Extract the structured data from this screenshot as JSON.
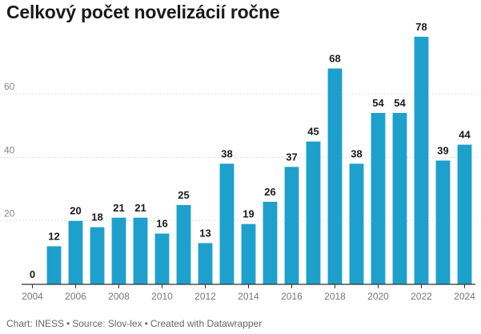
{
  "chart_data": {
    "type": "bar",
    "title": "Celkový počet novelizácií ročne",
    "xlabel": "",
    "ylabel": "",
    "categories": [
      "2004",
      "2005",
      "2006",
      "2007",
      "2008",
      "2009",
      "2010",
      "2011",
      "2012",
      "2013",
      "2014",
      "2015",
      "2016",
      "2017",
      "2018",
      "2019",
      "2020",
      "2021",
      "2022",
      "2023",
      "2024"
    ],
    "values": [
      0,
      12,
      20,
      18,
      21,
      21,
      16,
      25,
      13,
      38,
      19,
      26,
      37,
      45,
      68,
      38,
      54,
      54,
      78,
      39,
      44
    ],
    "data_labels": [
      "0",
      "12",
      "20",
      "18",
      "21",
      "21",
      "16",
      "25",
      "13",
      "38",
      "19",
      "26",
      "37",
      "45",
      "68",
      "38",
      "54",
      "54",
      "78",
      "39",
      "44"
    ],
    "x_tick_labels": [
      "2004",
      "2006",
      "2008",
      "2010",
      "2012",
      "2014",
      "2016",
      "2018",
      "2020",
      "2022",
      "2024"
    ],
    "y_ticks": [
      0,
      20,
      40,
      60
    ],
    "y_tick_labels": [
      "",
      "20",
      "40",
      "60"
    ],
    "ylim": [
      0,
      82
    ],
    "grid": true,
    "legend": "none",
    "bar_color": "#1ea0cc",
    "grid_color": "#e2e2e2",
    "axis_color": "#333333"
  },
  "footer": {
    "chart_credit": "Chart: INESS",
    "source": "Source: Slov-lex",
    "created_with": "Created with Datawrapper",
    "separator": "•"
  }
}
